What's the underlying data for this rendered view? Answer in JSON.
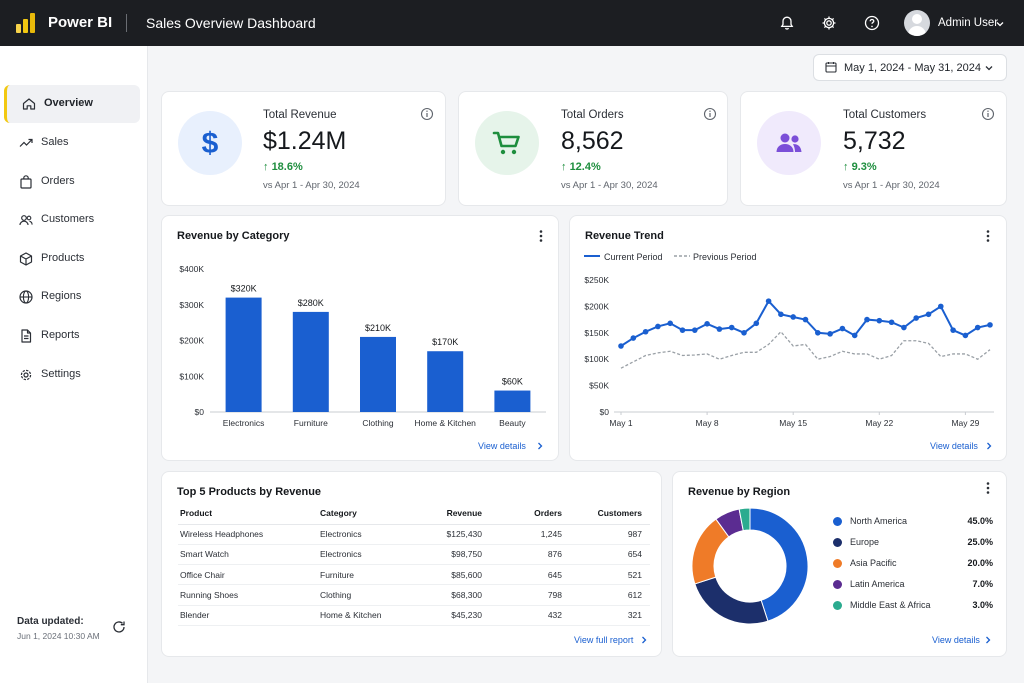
{
  "app": {
    "brand": "Power BI",
    "dashboard_title": "Sales Overview Dashboard",
    "accent": "#f2c811"
  },
  "user": {
    "name": "Admin User"
  },
  "top_icons": [
    "bell-icon",
    "gear-icon",
    "help-icon"
  ],
  "sidebar": {
    "items": [
      {
        "label": "Overview",
        "icon": "home-icon",
        "active": true
      },
      {
        "label": "Sales",
        "icon": "trend-icon",
        "active": false
      },
      {
        "label": "Orders",
        "icon": "bag-icon",
        "active": false
      },
      {
        "label": "Customers",
        "icon": "users-icon",
        "active": false
      },
      {
        "label": "Products",
        "icon": "box-icon",
        "active": false
      },
      {
        "label": "Regions",
        "icon": "globe-icon",
        "active": false
      },
      {
        "label": "Reports",
        "icon": "document-icon",
        "active": false
      },
      {
        "label": "Settings",
        "icon": "gear-icon",
        "active": false
      }
    ],
    "updated_label": "Data updated:",
    "updated_value": "Jun 1, 2024 10:30 AM"
  },
  "date_range": "May 1, 2024 - May 31, 2024",
  "kpis": [
    {
      "title": "Total Revenue",
      "value": "$1.24M",
      "delta": "18.6%",
      "compare": "vs Apr 1 - Apr 30, 2024",
      "icon": "dollar-icon",
      "color": "#1a5fd0",
      "bg": "#e8f0fd"
    },
    {
      "title": "Total Orders",
      "value": "8,562",
      "delta": "12.4%",
      "compare": "vs Apr 1 - Apr 30, 2024",
      "icon": "cart-icon",
      "color": "#1e8e3e",
      "bg": "#e6f4ea"
    },
    {
      "title": "Total Customers",
      "value": "5,732",
      "delta": "9.3%",
      "compare": "vs Apr 1 - Apr 30, 2024",
      "icon": "people-icon",
      "color": "#7b4fd8",
      "bg": "#f0eafc"
    }
  ],
  "revenue_by_category": {
    "title": "Revenue by Category",
    "link": "View details",
    "chart_data": {
      "type": "bar",
      "categories": [
        "Electronics",
        "Furniture",
        "Clothing",
        "Home & Kitchen",
        "Beauty"
      ],
      "values": [
        320,
        280,
        210,
        170,
        60
      ],
      "data_labels": [
        "$320K",
        "$280K",
        "$210K",
        "$170K",
        "$60K"
      ],
      "ytick_labels": [
        "$0",
        "$100K",
        "$200K",
        "$300K",
        "$400K"
      ],
      "yticks": [
        0,
        100,
        200,
        300,
        400
      ],
      "ylim": [
        0,
        400
      ],
      "units": "K USD",
      "color": "#1a5fd0"
    }
  },
  "revenue_trend": {
    "title": "Revenue Trend",
    "link": "View details",
    "chart_data": {
      "type": "line",
      "x": [
        1,
        2,
        3,
        4,
        5,
        6,
        7,
        8,
        9,
        10,
        11,
        12,
        13,
        14,
        15,
        16,
        17,
        18,
        19,
        20,
        21,
        22,
        23,
        24,
        25,
        26,
        27,
        28,
        29,
        30,
        31
      ],
      "x_ticks": [
        1,
        8,
        15,
        22,
        29
      ],
      "xtick_labels": [
        "May 1",
        "May 8",
        "May 15",
        "May 22",
        "May 29"
      ],
      "yticks": [
        0,
        50,
        100,
        150,
        200,
        250
      ],
      "ytick_labels": [
        "$0",
        "$50K",
        "$100K",
        "$150K",
        "$200K",
        "$250K"
      ],
      "ylim": [
        0,
        250
      ],
      "series": [
        {
          "name": "Current Period",
          "color": "#1a5fd0",
          "style": "solid",
          "values": [
            125,
            140,
            152,
            162,
            168,
            155,
            155,
            167,
            157,
            160,
            150,
            168,
            210,
            185,
            180,
            175,
            150,
            148,
            158,
            145,
            175,
            173,
            170,
            160,
            178,
            185,
            200,
            155,
            145,
            160,
            165
          ]
        },
        {
          "name": "Previous Period",
          "color": "#9aa0a6",
          "style": "dashed",
          "values": [
            83,
            95,
            107,
            112,
            115,
            107,
            108,
            110,
            100,
            107,
            113,
            113,
            128,
            152,
            125,
            128,
            100,
            105,
            115,
            110,
            110,
            100,
            107,
            135,
            135,
            130,
            105,
            110,
            110,
            100,
            118
          ]
        }
      ]
    }
  },
  "top_products": {
    "title": "Top 5 Products by Revenue",
    "link": "View full report",
    "columns": [
      "Product",
      "Category",
      "Revenue",
      "Orders",
      "Customers"
    ],
    "rows": [
      [
        "Wireless Headphones",
        "Electronics",
        "$125,430",
        "1,245",
        "987"
      ],
      [
        "Smart Watch",
        "Electronics",
        "$98,750",
        "876",
        "654"
      ],
      [
        "Office Chair",
        "Furniture",
        "$85,600",
        "645",
        "521"
      ],
      [
        "Running Shoes",
        "Clothing",
        "$68,300",
        "798",
        "612"
      ],
      [
        "Blender",
        "Home & Kitchen",
        "$45,230",
        "432",
        "321"
      ]
    ]
  },
  "revenue_by_region": {
    "title": "Revenue by Region",
    "link": "View details",
    "chart_data": {
      "type": "pie",
      "donut": true,
      "labels": [
        "North America",
        "Europe",
        "Asia Pacific",
        "Latin America",
        "Middle East & Africa"
      ],
      "values": [
        45.0,
        25.0,
        20.0,
        7.0,
        3.0
      ],
      "value_labels": [
        "45.0%",
        "25.0%",
        "20.0%",
        "7.0%",
        "3.0%"
      ],
      "colors": [
        "#1a5fd0",
        "#1c2f6b",
        "#ef7b28",
        "#5b2c91",
        "#2bab8f"
      ]
    }
  }
}
